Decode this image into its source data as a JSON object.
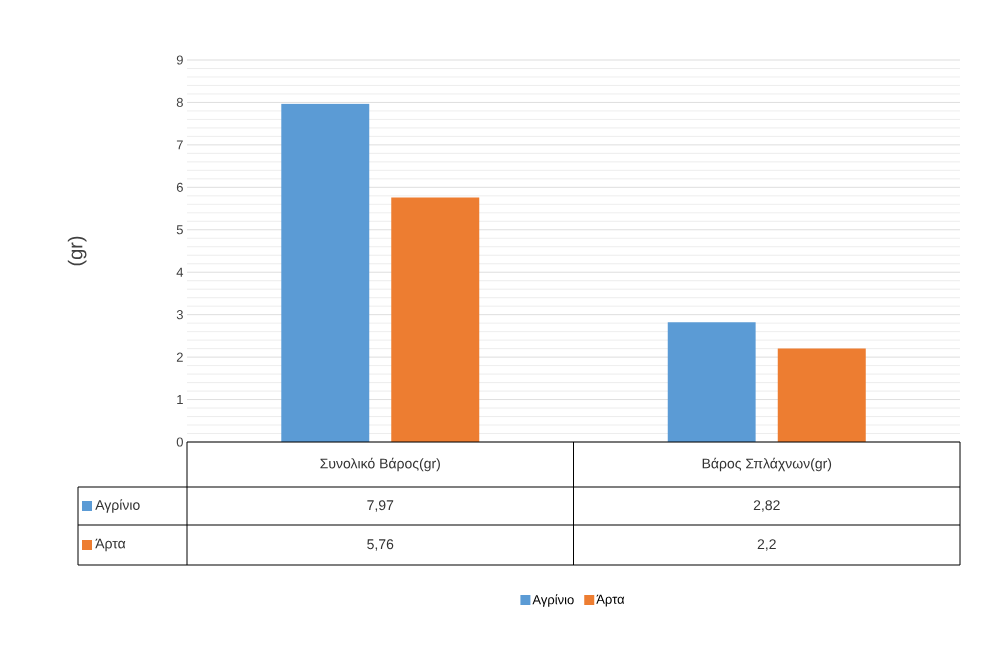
{
  "chart_data": {
    "type": "bar",
    "ylabel": "(gr)",
    "categories": [
      "Συνολικό Βάρος(gr)",
      "Βάρος Σπλάχνων(gr)"
    ],
    "series": [
      {
        "name": "Αγρίνιο",
        "color": "#5b9bd5",
        "values": [
          7.97,
          2.82
        ],
        "value_labels": [
          "7,97",
          "2,82"
        ]
      },
      {
        "name": "Άρτα",
        "color": "#ed7d31",
        "values": [
          5.76,
          2.2
        ],
        "value_labels": [
          "5,76",
          "2,2"
        ]
      }
    ],
    "ylim": [
      0,
      9
    ],
    "yticks": [
      0,
      1,
      2,
      3,
      4,
      5,
      6,
      7,
      8,
      9
    ],
    "grid": "y",
    "legend": "bottom"
  }
}
